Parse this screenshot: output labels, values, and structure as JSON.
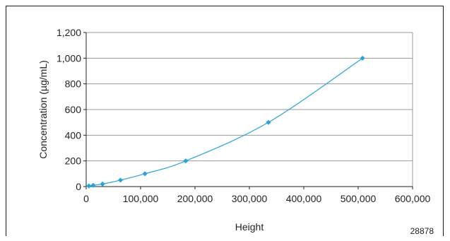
{
  "chart_data": {
    "type": "scatter",
    "title": "",
    "xlabel": "Height",
    "ylabel": "Concentration (µg/mL)",
    "xlim": [
      0,
      600000
    ],
    "ylim": [
      0,
      1200
    ],
    "x_ticks": [
      0,
      100000,
      200000,
      300000,
      400000,
      500000,
      600000
    ],
    "x_tick_labels": [
      "0",
      "100,000",
      "200,000",
      "300,000",
      "400,000",
      "500,000",
      "600,000"
    ],
    "y_ticks": [
      0,
      200,
      400,
      600,
      800,
      1000,
      1200
    ],
    "y_tick_labels": [
      "0",
      "200",
      "400",
      "600",
      "800",
      "1,000",
      "1,200"
    ],
    "grid": "horizontal",
    "legend": "none",
    "series": [
      {
        "points": [
          {
            "x": 5000,
            "y": 5
          },
          {
            "x": 13000,
            "y": 10
          },
          {
            "x": 30000,
            "y": 20
          },
          {
            "x": 63000,
            "y": 50
          },
          {
            "x": 108000,
            "y": 100
          },
          {
            "x": 183000,
            "y": 200
          },
          {
            "x": 335000,
            "y": 500
          },
          {
            "x": 508000,
            "y": 1000
          }
        ],
        "color": "#29a3d8",
        "marker": "diamond",
        "line": "smooth-fit"
      }
    ],
    "annotations": [
      "28878"
    ]
  }
}
